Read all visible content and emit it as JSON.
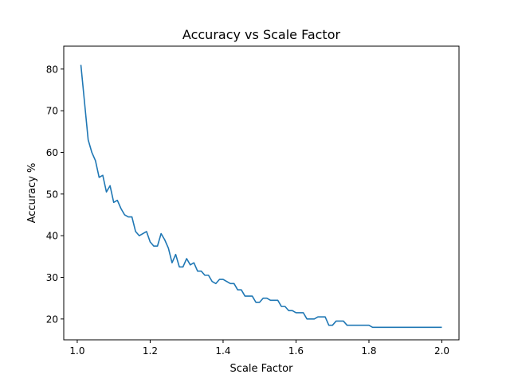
{
  "chart_data": {
    "type": "line",
    "title": "Accuracy vs Scale Factor",
    "xlabel": "Scale Factor",
    "ylabel": "Accuracy %",
    "xlim": [
      0.963,
      2.047
    ],
    "ylim": [
      15,
      85.5
    ],
    "xticks": [
      1.0,
      1.2,
      1.4,
      1.6,
      1.8,
      2.0
    ],
    "xtick_labels": [
      "1.0",
      "1.2",
      "1.4",
      "1.6",
      "1.8",
      "2.0"
    ],
    "yticks": [
      20,
      30,
      40,
      50,
      60,
      70,
      80
    ],
    "ytick_labels": [
      "20",
      "30",
      "40",
      "50",
      "60",
      "70",
      "80"
    ],
    "grid": false,
    "series": [
      {
        "color": "#1f77b4",
        "x": [
          1.01,
          1.02,
          1.03,
          1.04,
          1.05,
          1.06,
          1.07,
          1.08,
          1.09,
          1.1,
          1.11,
          1.12,
          1.13,
          1.14,
          1.15,
          1.16,
          1.17,
          1.18,
          1.19,
          1.2,
          1.21,
          1.22,
          1.23,
          1.24,
          1.25,
          1.26,
          1.27,
          1.28,
          1.29,
          1.3,
          1.31,
          1.32,
          1.33,
          1.34,
          1.35,
          1.36,
          1.37,
          1.38,
          1.39,
          1.4,
          1.41,
          1.42,
          1.43,
          1.44,
          1.45,
          1.46,
          1.47,
          1.48,
          1.49,
          1.5,
          1.51,
          1.52,
          1.53,
          1.54,
          1.55,
          1.56,
          1.57,
          1.58,
          1.59,
          1.6,
          1.61,
          1.62,
          1.63,
          1.64,
          1.65,
          1.66,
          1.67,
          1.68,
          1.69,
          1.7,
          1.71,
          1.72,
          1.73,
          1.74,
          1.75,
          1.76,
          1.77,
          1.78,
          1.79,
          1.8,
          1.81,
          1.82,
          1.83,
          1.84,
          1.85,
          1.86,
          1.87,
          1.88,
          1.89,
          1.9,
          1.91,
          1.92,
          1.93,
          1.94,
          1.95,
          1.96,
          1.97,
          1.98,
          1.99,
          2.0
        ],
        "y": [
          81,
          72,
          63,
          60,
          58,
          54,
          54.5,
          50.5,
          52,
          48,
          48.5,
          46.5,
          45,
          44.5,
          44.5,
          41,
          40,
          40.5,
          41,
          38.5,
          37.5,
          37.5,
          40.5,
          39,
          37,
          33.5,
          35.5,
          32.5,
          32.5,
          34.5,
          33,
          33.5,
          31.5,
          31.5,
          30.5,
          30.5,
          29,
          28.5,
          29.5,
          29.5,
          29,
          28.5,
          28.5,
          27,
          27,
          25.5,
          25.5,
          25.5,
          24,
          24,
          25,
          25,
          24.5,
          24.5,
          24.5,
          23,
          23,
          22,
          22,
          21.5,
          21.5,
          21.5,
          20,
          20,
          20,
          20.5,
          20.5,
          20.5,
          18.5,
          18.5,
          19.5,
          19.5,
          19.5,
          18.5,
          18.5,
          18.5,
          18.5,
          18.5,
          18.5,
          18.5,
          18,
          18,
          18,
          18,
          18,
          18,
          18,
          18,
          18,
          18,
          18,
          18,
          18,
          18,
          18,
          18,
          18,
          18,
          18,
          18
        ]
      }
    ]
  }
}
